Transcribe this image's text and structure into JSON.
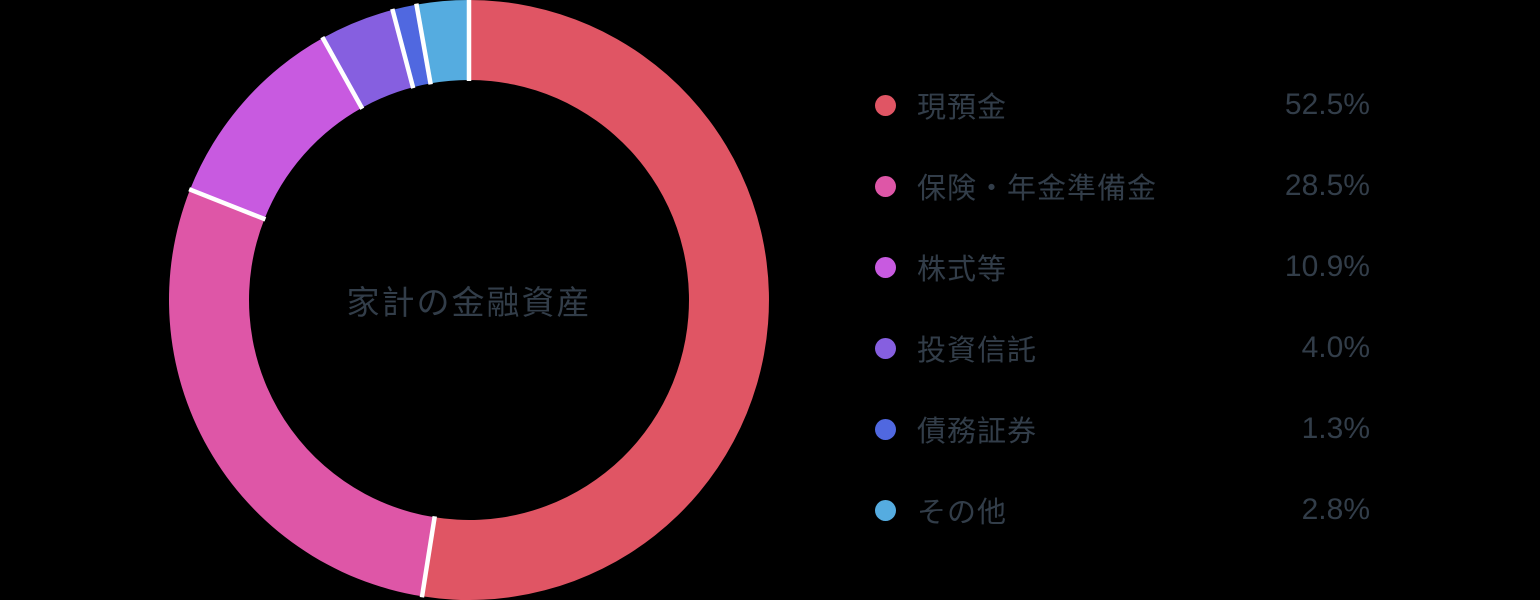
{
  "background_color": "#000000",
  "text_color": "#323D49",
  "chart_data": {
    "type": "pie",
    "variant": "donut",
    "title": "家計の金融資産",
    "start_angle_deg": 0,
    "direction": "clockwise",
    "legend_position": "right",
    "slice_gap_color": "#FFFFFF",
    "categories": [
      "現預金",
      "保険・年金準備金",
      "株式等",
      "投資信託",
      "債務証券",
      "その他"
    ],
    "values": [
      52.5,
      28.5,
      10.9,
      4.0,
      1.3,
      2.8
    ],
    "series": [
      {
        "label": "現預金",
        "value": 52.5,
        "display": "52.5%",
        "color": "#E05564"
      },
      {
        "label": "保険・年金準備金",
        "value": 28.5,
        "display": "28.5%",
        "color": "#DE56A7"
      },
      {
        "label": "株式等",
        "value": 10.9,
        "display": "10.9%",
        "color": "#C85AE0"
      },
      {
        "label": "投資信託",
        "value": 4.0,
        "display": "4.0%",
        "color": "#865FE0"
      },
      {
        "label": "債務証券",
        "value": 1.3,
        "display": "1.3%",
        "color": "#5068E0"
      },
      {
        "label": "その他",
        "value": 2.8,
        "display": "2.8%",
        "color": "#55ACE0"
      }
    ]
  }
}
